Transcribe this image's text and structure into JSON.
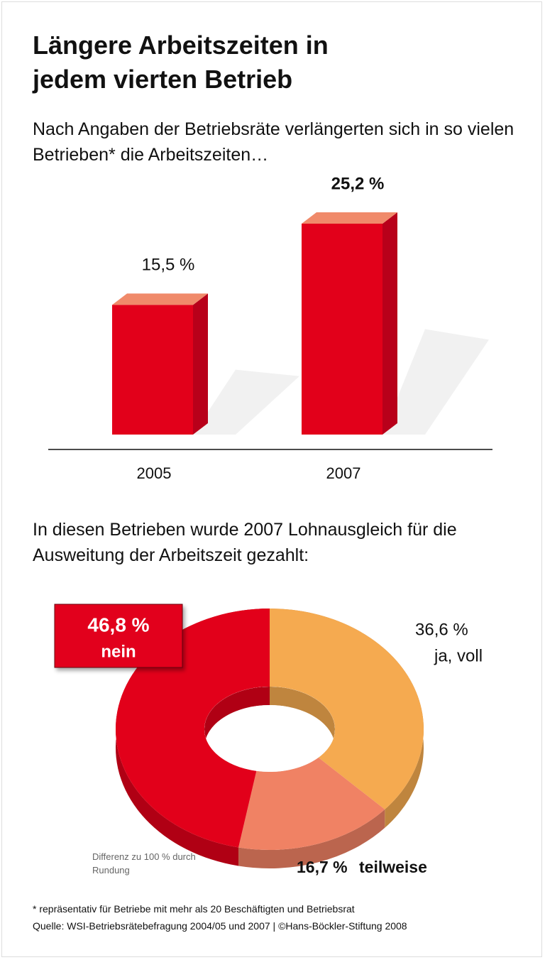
{
  "title": "Längere Arbeitszeiten in jedem vierten Betrieb",
  "chart_data": [
    {
      "type": "bar",
      "subtitle": "Nach Angaben der Betriebsräte verlängerten sich in so vielen Betrieben* die Arbeitszeiten…",
      "categories": [
        "2005",
        "2007"
      ],
      "values": [
        15.5,
        25.2
      ],
      "value_labels": [
        "15,5 %",
        "25,2 %"
      ],
      "color": "#e2001a"
    },
    {
      "type": "donut",
      "subtitle": "In diesen Betrieben wurde 2007 Lohnausgleich für die Ausweitung der Arbeitszeit gezahlt:",
      "categories": [
        "ja, voll",
        "teilweise",
        "nein"
      ],
      "values": [
        36.6,
        16.7,
        46.8
      ],
      "value_labels": [
        "36,6 %",
        "16,7 %",
        "46,8 %"
      ],
      "colors": [
        "#f5aa50",
        "#f08264",
        "#e2001a"
      ],
      "note": "Differenz zu 100 % durch Rundung"
    }
  ],
  "footnote": "* repräsentativ für Betriebe mit mehr als 20 Beschäftigten und Betriebsrat",
  "source": "Quelle: WSI-Betriebsrätebefragung 2004/05 und 2007 | ©Hans-Böckler-Stiftung 2008"
}
